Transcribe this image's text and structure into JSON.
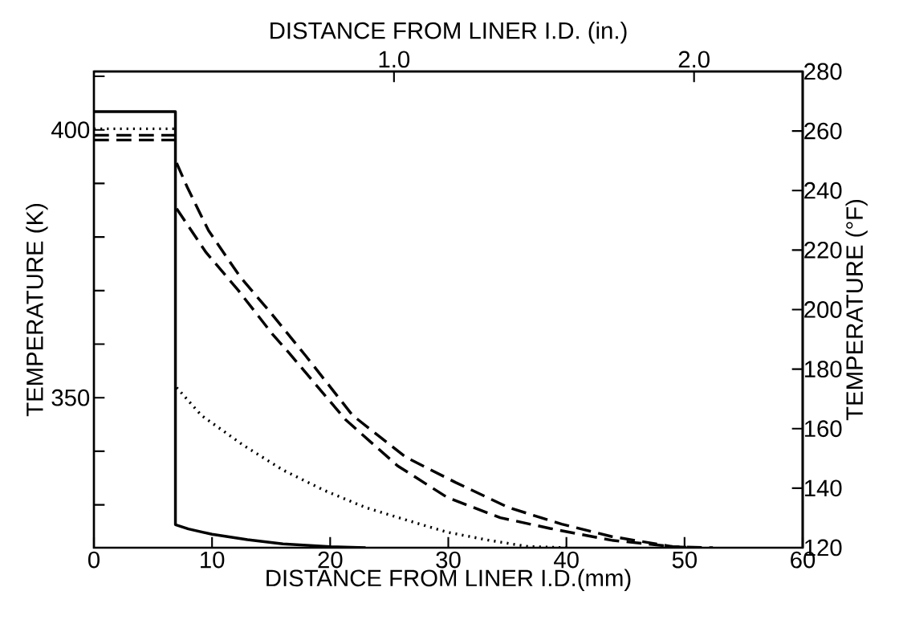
{
  "chart_data": {
    "type": "line",
    "xlabel": "DISTANCE FROM LINER I.D.(mm)",
    "x2label": "DISTANCE FROM LINER I.D. (in.)",
    "ylabel": "TEMPERATURE (K)",
    "y2label": "TEMPERATURE (°F)",
    "xlim": [
      0,
      60
    ],
    "xticks": [
      0,
      10,
      20,
      30,
      40,
      50,
      60
    ],
    "x2lim": [
      0,
      2.362
    ],
    "x2ticks": [
      {
        "value": 1,
        "label": "1.0"
      },
      {
        "value": 2,
        "label": "2.0"
      }
    ],
    "ylim": [
      322,
      410.9
    ],
    "yticks": [
      {
        "value": 330,
        "label": null
      },
      {
        "value": 340,
        "label": null
      },
      350,
      {
        "value": 360,
        "label": null
      },
      {
        "value": 370,
        "label": null
      },
      {
        "value": 380,
        "label": null
      },
      {
        "value": 390,
        "label": null
      },
      400,
      {
        "value": 410,
        "label": null
      }
    ],
    "y2lim": [
      120,
      280
    ],
    "y2ticks": [
      120,
      140,
      160,
      180,
      200,
      220,
      240,
      260,
      280
    ],
    "grid": false,
    "marker": "none",
    "series": [
      {
        "color": "#000000",
        "line_style": "solid",
        "x": [
          0,
          6.9,
          6.9,
          8,
          10,
          13,
          16,
          20,
          23
        ],
        "values": [
          403.4,
          403.4,
          326.3,
          325.5,
          324.5,
          323.5,
          322.7,
          322.2,
          322.0
        ]
      },
      {
        "color": "#000000",
        "line_style": "dotted",
        "x": [
          0,
          6.9,
          null,
          7.0,
          9.1,
          12.6,
          16.0,
          19.5,
          23.0,
          26.4,
          29.9,
          33.4,
          36.8,
          40.2
        ],
        "values": [
          400.2,
          400.2,
          null,
          351.9,
          346.7,
          341.2,
          336.5,
          332.7,
          329.5,
          327.2,
          324.9,
          323.4,
          322.2,
          322.0
        ]
      },
      {
        "color": "#000000",
        "line_style": "dashed",
        "x": [
          0,
          6.9,
          null,
          7.0,
          9.5,
          12.2,
          15.1,
          16.5,
          21.3,
          25.7,
          29.9,
          34.4,
          38.6,
          43.8,
          49.0,
          51.0
        ],
        "values": [
          398.1,
          398.1,
          null,
          385.3,
          377.1,
          370.1,
          361.9,
          358.4,
          345.9,
          337.3,
          331.4,
          327.6,
          325.6,
          323.4,
          322.2,
          322.0
        ]
      },
      {
        "color": "#000000",
        "line_style": "dashed",
        "x": [
          0,
          6.9,
          null,
          7.0,
          7.9,
          9.7,
          12.4,
          15.1,
          17.9,
          21.9,
          26.4,
          30.6,
          35.1,
          39.6,
          43.8,
          49.0,
          52.4
        ],
        "values": [
          399.0,
          399.0,
          null,
          393.8,
          389.3,
          381.2,
          372.5,
          365.5,
          357.9,
          346.7,
          338.9,
          334.2,
          329.5,
          326.4,
          324.1,
          322.2,
          322.0
        ]
      }
    ]
  }
}
